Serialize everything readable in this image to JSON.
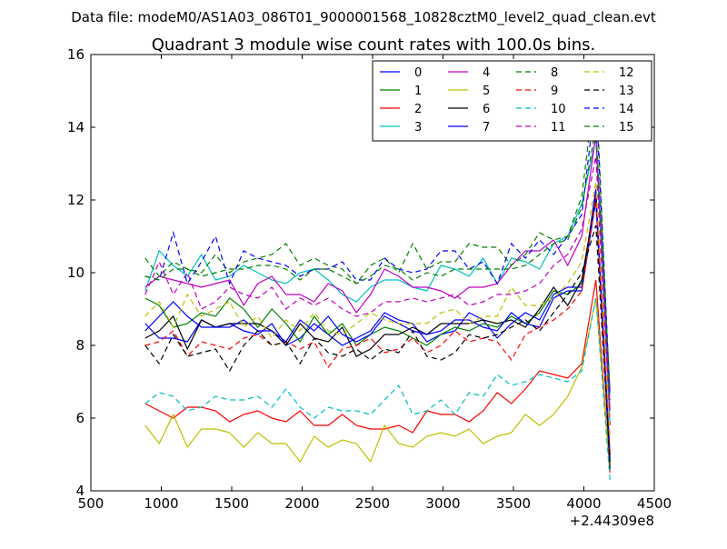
{
  "header_text": "Data file: modeM0/AS1A03_086T01_9000001568_10828cztM0_level2_quad_clean.evt",
  "chart_data": {
    "type": "line",
    "title": "Quadrant 3 module wise count rates with 100.0s bins.",
    "xlabel": "",
    "ylabel": "",
    "xlim": [
      500,
      4500
    ],
    "ylim": [
      4,
      16
    ],
    "xticks": [
      500,
      1000,
      1500,
      2000,
      2500,
      3000,
      3500,
      4000,
      4500
    ],
    "yticks": [
      4,
      6,
      8,
      10,
      12,
      14,
      16
    ],
    "x_offset_label": "+2.44309e8",
    "legend_position": "top-right",
    "grid": false,
    "x": [
      885,
      985,
      1085,
      1185,
      1285,
      1385,
      1485,
      1585,
      1685,
      1785,
      1885,
      1985,
      2085,
      2185,
      2285,
      2385,
      2485,
      2585,
      2685,
      2785,
      2885,
      2985,
      3085,
      3185,
      3285,
      3385,
      3485,
      3585,
      3685,
      3785,
      3885,
      3985,
      4085,
      4185
    ],
    "series": [
      {
        "name": "0",
        "color": "#0000ff",
        "dash": "solid",
        "values": [
          8.6,
          8.2,
          8.2,
          8.1,
          8.7,
          8.5,
          8.6,
          8.4,
          8.3,
          8.6,
          8.0,
          8.2,
          8.6,
          8.3,
          8.0,
          8.2,
          8.4,
          8.9,
          8.7,
          8.6,
          8.1,
          8.3,
          8.4,
          8.9,
          8.7,
          8.2,
          8.6,
          8.9,
          8.7,
          9.4,
          9.6,
          9.6,
          12.3,
          5.0
        ]
      },
      {
        "name": "1",
        "color": "#008000",
        "dash": "solid",
        "values": [
          9.3,
          9.1,
          8.5,
          8.6,
          8.9,
          8.8,
          9.3,
          9.0,
          8.5,
          9.0,
          8.6,
          8.1,
          8.8,
          8.3,
          8.6,
          8.0,
          8.3,
          8.5,
          8.4,
          8.2,
          8.0,
          8.3,
          8.5,
          8.4,
          8.6,
          8.5,
          8.8,
          8.6,
          8.9,
          9.5,
          9.4,
          9.7,
          12.0,
          4.8
        ]
      },
      {
        "name": "2",
        "color": "#ff0000",
        "dash": "solid",
        "values": [
          6.4,
          6.2,
          6.0,
          6.3,
          6.3,
          6.2,
          5.9,
          6.1,
          6.2,
          6.0,
          5.9,
          6.2,
          5.8,
          5.8,
          6.1,
          5.8,
          5.7,
          5.7,
          5.8,
          5.6,
          6.2,
          6.1,
          6.1,
          5.9,
          6.2,
          6.7,
          6.4,
          6.8,
          7.3,
          7.2,
          7.1,
          7.5,
          9.8,
          4.5
        ]
      },
      {
        "name": "3",
        "color": "#00bfbf",
        "dash": "solid",
        "values": [
          9.5,
          10.6,
          10.2,
          9.9,
          10.5,
          9.8,
          9.9,
          10.2,
          10.0,
          9.8,
          9.7,
          10.0,
          10.1,
          9.8,
          9.4,
          9.2,
          9.6,
          9.8,
          9.8,
          9.6,
          9.5,
          10.2,
          10.1,
          9.9,
          10.4,
          9.7,
          10.4,
          10.3,
          10.1,
          10.8,
          11.0,
          11.9,
          13.7,
          5.8
        ]
      },
      {
        "name": "4",
        "color": "#bf00bf",
        "dash": "solid",
        "values": [
          9.6,
          9.9,
          9.8,
          9.7,
          9.6,
          9.7,
          9.8,
          9.1,
          9.7,
          9.9,
          9.4,
          9.4,
          9.2,
          9.7,
          9.5,
          8.9,
          9.4,
          10.1,
          9.9,
          9.6,
          9.6,
          9.5,
          9.3,
          9.6,
          9.6,
          9.7,
          10.2,
          10.6,
          10.6,
          10.9,
          10.2,
          11.0,
          13.8,
          6.2
        ]
      },
      {
        "name": "5",
        "color": "#bfbf00",
        "dash": "solid",
        "values": [
          5.8,
          5.3,
          6.1,
          5.2,
          5.7,
          5.7,
          5.6,
          5.2,
          5.6,
          5.3,
          5.3,
          4.8,
          5.5,
          5.2,
          5.4,
          5.3,
          4.8,
          5.8,
          5.3,
          5.2,
          5.5,
          5.6,
          5.5,
          5.7,
          5.3,
          5.5,
          5.6,
          6.1,
          5.8,
          6.1,
          6.6,
          7.4,
          9.3,
          4.6
        ]
      },
      {
        "name": "6",
        "color": "#000000",
        "dash": "solid",
        "values": [
          8.2,
          8.4,
          8.8,
          7.9,
          8.7,
          8.5,
          8.6,
          8.6,
          8.6,
          8.4,
          8.0,
          8.6,
          8.2,
          8.1,
          8.5,
          7.7,
          7.9,
          8.3,
          8.3,
          8.5,
          8.3,
          8.6,
          8.6,
          8.6,
          8.7,
          8.6,
          8.7,
          8.5,
          9.0,
          9.6,
          9.1,
          9.8,
          12.1,
          4.6
        ]
      },
      {
        "name": "7",
        "color": "#0000ff",
        "dash": "solid",
        "values": [
          8.4,
          8.8,
          9.2,
          8.8,
          8.5,
          8.5,
          8.5,
          8.7,
          8.4,
          8.4,
          8.1,
          8.7,
          8.4,
          8.8,
          8.3,
          8.1,
          8.3,
          8.8,
          8.6,
          8.4,
          8.3,
          8.4,
          8.7,
          8.7,
          8.5,
          8.4,
          8.9,
          8.6,
          8.5,
          9.3,
          9.5,
          9.5,
          12.0,
          4.9
        ]
      },
      {
        "name": "8",
        "color": "#008000",
        "dash": "dashed",
        "values": [
          10.4,
          9.9,
          10.3,
          10.1,
          10.0,
          10.5,
          10.0,
          10.3,
          10.4,
          10.5,
          10.8,
          10.2,
          10.4,
          10.2,
          10.1,
          9.7,
          10.2,
          10.4,
          10.0,
          10.8,
          10.1,
          10.3,
          10.3,
          10.8,
          10.7,
          10.7,
          10.2,
          10.5,
          11.1,
          10.9,
          11.0,
          12.1,
          15.3,
          6.5
        ]
      },
      {
        "name": "9",
        "color": "#ff0000",
        "dash": "dashed",
        "values": [
          8.0,
          8.1,
          8.4,
          7.7,
          8.1,
          8.0,
          7.9,
          8.2,
          8.3,
          8.0,
          8.1,
          7.9,
          8.1,
          7.4,
          7.9,
          8.0,
          8.2,
          7.8,
          7.9,
          8.2,
          7.8,
          8.0,
          8.4,
          8.1,
          8.2,
          8.1,
          7.6,
          8.3,
          8.5,
          8.7,
          9.0,
          9.5,
          12.1,
          5.0
        ]
      },
      {
        "name": "10",
        "color": "#00bfbf",
        "dash": "dashed",
        "values": [
          6.4,
          6.7,
          6.6,
          6.2,
          6.3,
          6.6,
          6.5,
          6.5,
          6.6,
          6.3,
          6.8,
          6.3,
          6.0,
          6.3,
          6.2,
          6.2,
          6.1,
          6.5,
          6.9,
          6.1,
          6.2,
          6.5,
          6.1,
          6.7,
          6.6,
          7.2,
          6.9,
          7.0,
          7.2,
          7.1,
          7.0,
          7.3,
          9.3,
          4.3
        ]
      },
      {
        "name": "11",
        "color": "#bf00bf",
        "dash": "dashed",
        "values": [
          9.4,
          10.3,
          9.4,
          10.0,
          9.0,
          9.2,
          9.6,
          9.4,
          9.3,
          9.6,
          9.0,
          9.3,
          9.1,
          9.3,
          9.0,
          8.8,
          8.9,
          9.2,
          9.2,
          9.3,
          9.2,
          9.3,
          9.4,
          9.1,
          9.2,
          9.4,
          9.4,
          9.5,
          9.7,
          10.2,
          10.5,
          11.2,
          13.2,
          5.8
        ]
      },
      {
        "name": "12",
        "color": "#bfbf00",
        "dash": "dashed",
        "values": [
          8.8,
          9.2,
          8.5,
          9.4,
          8.8,
          9.0,
          9.2,
          8.5,
          8.8,
          8.2,
          8.7,
          8.4,
          8.9,
          8.4,
          8.3,
          8.6,
          8.9,
          8.7,
          8.6,
          8.6,
          8.6,
          8.9,
          9.0,
          8.6,
          8.8,
          8.8,
          9.6,
          9.1,
          9.1,
          9.3,
          9.7,
          10.3,
          12.5,
          5.5
        ]
      },
      {
        "name": "13",
        "color": "#000000",
        "dash": "dashed",
        "values": [
          8.0,
          7.5,
          8.3,
          7.7,
          7.8,
          7.9,
          7.3,
          8.0,
          8.4,
          8.0,
          8.1,
          7.5,
          8.2,
          7.8,
          7.7,
          7.9,
          7.6,
          7.9,
          7.8,
          8.4,
          7.7,
          7.6,
          7.8,
          8.3,
          8.2,
          8.3,
          8.5,
          8.7,
          8.4,
          8.9,
          9.4,
          10.0,
          11.3,
          4.8
        ]
      },
      {
        "name": "14",
        "color": "#0000ff",
        "dash": "dashed",
        "values": [
          9.9,
          9.8,
          11.1,
          9.7,
          10.3,
          11.0,
          9.7,
          10.6,
          10.4,
          10.3,
          10.2,
          9.9,
          10.1,
          10.1,
          10.3,
          9.8,
          9.8,
          10.4,
          10.1,
          10.0,
          10.1,
          10.6,
          10.6,
          10.1,
          10.3,
          9.7,
          10.8,
          10.4,
          10.9,
          10.5,
          11.0,
          11.6,
          14.9,
          6.6
        ]
      },
      {
        "name": "15",
        "color": "#008000",
        "dash": "dashed",
        "values": [
          9.9,
          9.8,
          10.1,
          10.1,
          9.9,
          10.0,
          10.1,
          10.1,
          10.2,
          10.2,
          10.1,
          9.8,
          10.1,
          10.1,
          9.9,
          9.7,
          9.9,
          10.2,
          10.1,
          9.8,
          10.0,
          9.9,
          10.1,
          10.1,
          10.1,
          10.1,
          10.1,
          10.2,
          10.5,
          10.8,
          10.9,
          11.8,
          14.0,
          6.8
        ]
      }
    ]
  }
}
